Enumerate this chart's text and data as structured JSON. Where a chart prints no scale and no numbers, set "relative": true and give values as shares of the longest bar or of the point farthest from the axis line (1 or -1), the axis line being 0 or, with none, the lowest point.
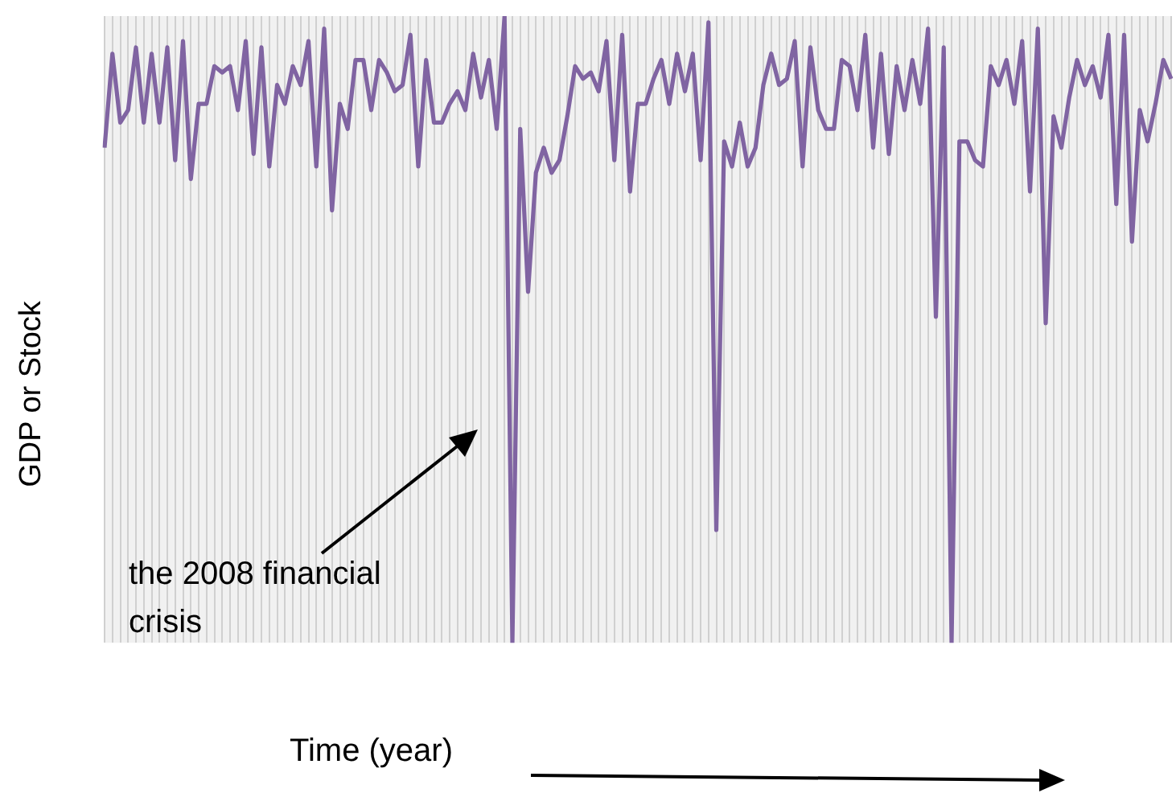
{
  "chart_data": {
    "type": "line",
    "relative": true,
    "xlabel": "Time (year)",
    "ylabel": "GDP or Stock",
    "annotations": [
      "the 2008 financial crisis"
    ],
    "grid": "x",
    "legend": false,
    "marker": "none",
    "categories": [
      null,
      null,
      null,
      null,
      null,
      null,
      null,
      null,
      null,
      null,
      null,
      null,
      null,
      null,
      null,
      null,
      null,
      null,
      null,
      null,
      null,
      null,
      null,
      null,
      null,
      null,
      null,
      null,
      null,
      null,
      null,
      null,
      null,
      null,
      null,
      null,
      null,
      null,
      null,
      null,
      null,
      null,
      null,
      null,
      null,
      null,
      null,
      null,
      null,
      null,
      null,
      null,
      null,
      null,
      null,
      null,
      null,
      null,
      null,
      null,
      null,
      null,
      null,
      null,
      null,
      null,
      null,
      null,
      null,
      null,
      null,
      null,
      null,
      null,
      null,
      null,
      null,
      null,
      null,
      null,
      null,
      null,
      null,
      null,
      null,
      null,
      null,
      null,
      null,
      null,
      null,
      null,
      null,
      null,
      null,
      null,
      null,
      null,
      null,
      null,
      null,
      null,
      null,
      null,
      null,
      null,
      null,
      null,
      null,
      null,
      null,
      null,
      null,
      null,
      null,
      null,
      null,
      null,
      null,
      null,
      null,
      null,
      null,
      null,
      null,
      null,
      null,
      null,
      null,
      null,
      null,
      null,
      null,
      null,
      null,
      null,
      null
    ],
    "series": [
      {
        "color": "#8064a2",
        "values": [
          0.79,
          0.94,
          0.83,
          0.85,
          0.95,
          0.83,
          0.94,
          0.83,
          0.95,
          0.77,
          0.96,
          0.74,
          0.86,
          0.86,
          0.92,
          0.91,
          0.92,
          0.85,
          0.96,
          0.78,
          0.95,
          0.76,
          0.89,
          0.86,
          0.92,
          0.89,
          0.96,
          0.76,
          0.98,
          0.69,
          0.86,
          0.82,
          0.93,
          0.93,
          0.85,
          0.93,
          0.91,
          0.88,
          0.89,
          0.97,
          0.76,
          0.93,
          0.83,
          0.83,
          0.86,
          0.88,
          0.85,
          0.94,
          0.87,
          0.93,
          0.82,
          1,
          0,
          0.82,
          0.56,
          0.75,
          0.79,
          0.75,
          0.77,
          0.84,
          0.92,
          0.9,
          0.91,
          0.88,
          0.96,
          0.77,
          0.97,
          0.72,
          0.86,
          0.86,
          0.9,
          0.93,
          0.86,
          0.94,
          0.88,
          0.94,
          0.77,
          0.99,
          0.18,
          0.8,
          0.76,
          0.83,
          0.76,
          0.79,
          0.89,
          0.94,
          0.89,
          0.9,
          0.96,
          0.76,
          0.95,
          0.85,
          0.82,
          0.82,
          0.93,
          0.92,
          0.85,
          0.97,
          0.79,
          0.94,
          0.78,
          0.92,
          0.85,
          0.93,
          0.86,
          0.98,
          0.52,
          0.95,
          0,
          0.8,
          0.8,
          0.77,
          0.76,
          0.92,
          0.89,
          0.93,
          0.86,
          0.96,
          0.72,
          0.98,
          0.51,
          0.84,
          0.79,
          0.87,
          0.93,
          0.89,
          0.92,
          0.87,
          0.97,
          0.7,
          0.97,
          0.64,
          0.85,
          0.8,
          0.86,
          0.93,
          0.9
        ]
      }
    ]
  }
}
